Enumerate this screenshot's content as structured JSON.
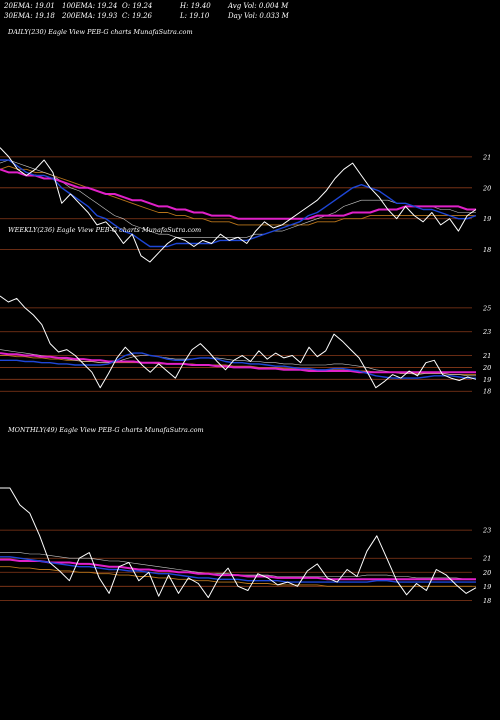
{
  "header": {
    "stats": [
      [
        "20EMA: 19.01",
        "100EMA: 19.24",
        "O: 19.24",
        "H: 19.40",
        "Avg Vol: 0.004  M"
      ],
      [
        "30EMA: 19.18",
        "200EMA: 19.93",
        "C: 19.26",
        "L: 19.10",
        "Day Vol: 0.033 M"
      ]
    ]
  },
  "colors": {
    "background": "#000000",
    "price": "#ffffff",
    "ema_fast": "#1e46d6",
    "ema_slow": "#e020c8",
    "ema_thin": "#c9c9c9",
    "ema_brown": "#b8741a",
    "grid": "#8a3a1a"
  },
  "chart_data": [
    {
      "type": "line",
      "title": "DAILY(230)  Eagle   View  PEB-G charts MunafaSutra.com",
      "yticks": [
        "21",
        "20",
        "19",
        "18"
      ],
      "ylim": [
        17.6,
        22.0
      ],
      "series": [
        {
          "role": "price",
          "values": [
            21.3,
            21.0,
            20.6,
            20.4,
            20.6,
            20.9,
            20.5,
            19.5,
            19.8,
            19.5,
            19.2,
            18.8,
            18.9,
            18.6,
            18.2,
            18.5,
            17.8,
            17.6,
            17.9,
            18.2,
            18.4,
            18.3,
            18.1,
            18.3,
            18.2,
            18.5,
            18.3,
            18.4,
            18.2,
            18.6,
            18.9,
            18.7,
            18.8,
            19.0,
            19.2,
            19.4,
            19.6,
            19.9,
            20.3,
            20.6,
            20.8,
            20.4,
            20.0,
            19.7,
            19.3,
            19.0,
            19.4,
            19.1,
            18.9,
            19.2,
            18.8,
            19.0,
            18.6,
            19.1,
            19.3
          ]
        },
        {
          "role": "ema_fast",
          "values": [
            20.9,
            20.9,
            20.7,
            20.5,
            20.4,
            20.4,
            20.3,
            20.0,
            19.8,
            19.6,
            19.4,
            19.1,
            19.0,
            18.8,
            18.6,
            18.5,
            18.3,
            18.1,
            18.1,
            18.1,
            18.2,
            18.2,
            18.2,
            18.2,
            18.2,
            18.3,
            18.3,
            18.3,
            18.3,
            18.4,
            18.5,
            18.6,
            18.7,
            18.8,
            18.9,
            19.1,
            19.2,
            19.4,
            19.6,
            19.8,
            20.0,
            20.1,
            20.0,
            19.9,
            19.7,
            19.5,
            19.5,
            19.4,
            19.3,
            19.3,
            19.2,
            19.1,
            19.0,
            19.0,
            19.1
          ]
        },
        {
          "role": "ema_thin",
          "values": [
            20.8,
            20.9,
            20.8,
            20.7,
            20.6,
            20.5,
            20.4,
            20.2,
            20.0,
            19.9,
            19.7,
            19.5,
            19.3,
            19.1,
            19.0,
            18.8,
            18.7,
            18.6,
            18.5,
            18.5,
            18.4,
            18.4,
            18.4,
            18.4,
            18.4,
            18.4,
            18.4,
            18.4,
            18.4,
            18.5,
            18.5,
            18.6,
            18.6,
            18.7,
            18.8,
            18.9,
            19.0,
            19.1,
            19.2,
            19.4,
            19.5,
            19.6,
            19.6,
            19.6,
            19.6,
            19.5,
            19.5,
            19.4,
            19.4,
            19.4,
            19.3,
            19.3,
            19.2,
            19.2,
            19.2
          ]
        },
        {
          "role": "ema_brown",
          "values": [
            20.6,
            20.7,
            20.6,
            20.6,
            20.5,
            20.5,
            20.4,
            20.3,
            20.2,
            20.1,
            20.0,
            19.9,
            19.8,
            19.7,
            19.6,
            19.5,
            19.4,
            19.3,
            19.2,
            19.2,
            19.1,
            19.1,
            19.0,
            19.0,
            18.9,
            18.9,
            18.9,
            18.8,
            18.8,
            18.8,
            18.8,
            18.8,
            18.8,
            18.8,
            18.8,
            18.8,
            18.9,
            18.9,
            18.9,
            19.0,
            19.0,
            19.0,
            19.1,
            19.1,
            19.1,
            19.1,
            19.1,
            19.1,
            19.1,
            19.1,
            19.1,
            19.1,
            19.1,
            19.1,
            19.1
          ]
        },
        {
          "role": "ema_slow",
          "values": [
            20.6,
            20.5,
            20.5,
            20.4,
            20.4,
            20.3,
            20.3,
            20.2,
            20.1,
            20.0,
            20.0,
            19.9,
            19.8,
            19.8,
            19.7,
            19.6,
            19.6,
            19.5,
            19.4,
            19.4,
            19.3,
            19.3,
            19.2,
            19.2,
            19.1,
            19.1,
            19.1,
            19.0,
            19.0,
            19.0,
            19.0,
            19.0,
            19.0,
            19.0,
            19.0,
            19.0,
            19.1,
            19.1,
            19.1,
            19.1,
            19.2,
            19.2,
            19.2,
            19.3,
            19.3,
            19.3,
            19.4,
            19.4,
            19.4,
            19.4,
            19.4,
            19.4,
            19.4,
            19.3,
            19.3
          ]
        }
      ]
    },
    {
      "type": "line",
      "title": "WEEKLY(236)  Eagle   View  PEB-G charts MunafaSutra.com",
      "yticks": [
        "25",
        "23",
        "21",
        "20",
        "19",
        "18"
      ],
      "ylim": [
        17.6,
        26.0
      ],
      "series": [
        {
          "role": "price",
          "values": [
            26.0,
            25.5,
            25.8,
            25.0,
            24.4,
            23.6,
            22.0,
            21.3,
            21.5,
            21.0,
            20.3,
            19.6,
            18.3,
            19.5,
            20.8,
            21.7,
            21.0,
            20.2,
            19.6,
            20.3,
            19.7,
            19.1,
            20.4,
            21.5,
            22.0,
            21.3,
            20.5,
            19.8,
            20.6,
            21.0,
            20.5,
            21.4,
            20.7,
            21.2,
            20.8,
            21.0,
            20.4,
            21.7,
            20.9,
            21.4,
            22.8,
            22.2,
            21.5,
            20.8,
            19.6,
            18.3,
            18.8,
            19.4,
            19.1,
            19.7,
            19.3,
            20.4,
            20.6,
            19.4,
            19.1,
            18.9,
            19.2,
            19.0
          ]
        },
        {
          "role": "ema_fast",
          "values": [
            20.6,
            20.6,
            20.6,
            20.5,
            20.5,
            20.4,
            20.4,
            20.3,
            20.3,
            20.2,
            20.2,
            20.2,
            20.2,
            20.3,
            20.6,
            21.0,
            21.2,
            21.2,
            21.0,
            20.9,
            20.7,
            20.6,
            20.6,
            20.7,
            20.8,
            20.8,
            20.7,
            20.5,
            20.4,
            20.4,
            20.3,
            20.3,
            20.2,
            20.1,
            20.1,
            20.0,
            19.9,
            19.9,
            19.8,
            19.8,
            19.9,
            19.9,
            19.8,
            19.7,
            19.5,
            19.3,
            19.2,
            19.1,
            19.1,
            19.1,
            19.1,
            19.2,
            19.3,
            19.3,
            19.3,
            19.2,
            19.1,
            19.1
          ]
        },
        {
          "role": "ema_thin",
          "values": [
            21.5,
            21.4,
            21.3,
            21.2,
            21.1,
            21.0,
            20.9,
            20.8,
            20.7,
            20.6,
            20.5,
            20.5,
            20.4,
            20.4,
            20.5,
            20.7,
            20.9,
            21.0,
            21.0,
            20.9,
            20.8,
            20.7,
            20.7,
            20.7,
            20.8,
            20.8,
            20.8,
            20.7,
            20.6,
            20.6,
            20.5,
            20.5,
            20.4,
            20.4,
            20.3,
            20.3,
            20.2,
            20.2,
            20.2,
            20.2,
            20.3,
            20.3,
            20.2,
            20.1,
            20.0,
            19.8,
            19.7,
            19.6,
            19.5,
            19.5,
            19.4,
            19.5,
            19.5,
            19.5,
            19.4,
            19.4,
            19.3,
            19.3
          ]
        },
        {
          "role": "ema_brown",
          "values": [
            21.0,
            21.0,
            20.9,
            20.9,
            20.8,
            20.8,
            20.7,
            20.7,
            20.6,
            20.6,
            20.5,
            20.5,
            20.4,
            20.4,
            20.4,
            20.4,
            20.4,
            20.4,
            20.4,
            20.3,
            20.3,
            20.3,
            20.3,
            20.3,
            20.2,
            20.2,
            20.2,
            20.2,
            20.1,
            20.1,
            20.1,
            20.0,
            20.0,
            20.0,
            19.9,
            19.9,
            19.9,
            19.8,
            19.8,
            19.8,
            19.8,
            19.8,
            19.7,
            19.7,
            19.7,
            19.6,
            19.6,
            19.6,
            19.5,
            19.5,
            19.5,
            19.5,
            19.5,
            19.5,
            19.4,
            19.4,
            19.4,
            19.4
          ]
        },
        {
          "role": "ema_slow",
          "values": [
            21.2,
            21.1,
            21.1,
            21.0,
            21.0,
            20.9,
            20.9,
            20.8,
            20.8,
            20.7,
            20.7,
            20.6,
            20.6,
            20.5,
            20.5,
            20.5,
            20.5,
            20.4,
            20.4,
            20.4,
            20.3,
            20.3,
            20.3,
            20.2,
            20.2,
            20.2,
            20.1,
            20.1,
            20.0,
            20.0,
            20.0,
            19.9,
            19.9,
            19.9,
            19.8,
            19.8,
            19.8,
            19.7,
            19.7,
            19.7,
            19.7,
            19.7,
            19.7,
            19.6,
            19.6,
            19.6,
            19.6,
            19.6,
            19.6,
            19.6,
            19.6,
            19.6,
            19.6,
            19.6,
            19.6,
            19.6,
            19.6,
            19.6
          ]
        }
      ]
    },
    {
      "type": "line",
      "title": "MONTHLY(49)  Eagle   View  PEB-G charts MunafaSutra.com",
      "yticks": [
        "23",
        "21",
        "20",
        "19",
        "18"
      ],
      "ylim": [
        17.6,
        26.0
      ],
      "series": [
        {
          "role": "price",
          "values": [
            26.0,
            26.0,
            24.8,
            24.2,
            22.6,
            20.7,
            20.1,
            19.4,
            21.0,
            21.4,
            19.6,
            18.5,
            20.4,
            20.7,
            19.4,
            20.0,
            18.3,
            19.8,
            18.5,
            19.6,
            19.2,
            18.2,
            19.5,
            20.3,
            19.0,
            18.7,
            19.9,
            19.6,
            19.1,
            19.3,
            19.0,
            20.1,
            20.6,
            19.6,
            19.3,
            20.2,
            19.7,
            21.5,
            22.6,
            21.0,
            19.4,
            18.4,
            19.2,
            18.7,
            20.2,
            19.8,
            19.1,
            18.5,
            18.9
          ]
        },
        {
          "role": "ema_fast",
          "values": [
            21.1,
            21.1,
            21.0,
            20.9,
            20.8,
            20.7,
            20.6,
            20.5,
            20.4,
            20.4,
            20.3,
            20.2,
            20.2,
            20.1,
            20.1,
            20.0,
            19.9,
            19.9,
            19.8,
            19.7,
            19.6,
            19.6,
            19.5,
            19.5,
            19.5,
            19.4,
            19.4,
            19.4,
            19.4,
            19.3,
            19.3,
            19.3,
            19.3,
            19.3,
            19.3,
            19.3,
            19.3,
            19.3,
            19.4,
            19.4,
            19.3,
            19.3,
            19.3,
            19.3,
            19.3,
            19.3,
            19.3,
            19.3,
            19.3
          ]
        },
        {
          "role": "ema_thin",
          "values": [
            21.4,
            21.4,
            21.4,
            21.3,
            21.3,
            21.2,
            21.1,
            21.0,
            21.0,
            21.0,
            20.9,
            20.8,
            20.8,
            20.7,
            20.6,
            20.5,
            20.4,
            20.3,
            20.2,
            20.1,
            20.0,
            19.9,
            19.9,
            19.9,
            19.8,
            19.8,
            19.8,
            19.8,
            19.7,
            19.7,
            19.7,
            19.7,
            19.7,
            19.7,
            19.7,
            19.7,
            19.7,
            19.8,
            19.8,
            19.8,
            19.7,
            19.7,
            19.6,
            19.6,
            19.6,
            19.6,
            19.6,
            19.5,
            19.5
          ]
        },
        {
          "role": "ema_brown",
          "values": [
            20.4,
            20.4,
            20.3,
            20.3,
            20.2,
            20.2,
            20.1,
            20.1,
            20.0,
            20.0,
            19.9,
            19.9,
            19.8,
            19.8,
            19.7,
            19.7,
            19.6,
            19.6,
            19.5,
            19.5,
            19.4,
            19.4,
            19.3,
            19.3,
            19.3,
            19.2,
            19.2,
            19.2,
            19.1,
            19.1,
            19.1,
            19.1,
            19.1,
            19.0,
            19.0,
            19.0,
            19.0,
            19.0,
            19.0,
            19.0,
            19.0,
            19.0,
            19.0,
            19.0,
            19.0,
            19.0,
            19.0,
            19.0,
            19.0
          ]
        },
        {
          "role": "ema_slow",
          "values": [
            20.9,
            20.9,
            20.8,
            20.8,
            20.8,
            20.7,
            20.7,
            20.7,
            20.6,
            20.6,
            20.5,
            20.4,
            20.4,
            20.3,
            20.2,
            20.2,
            20.1,
            20.1,
            20.0,
            20.0,
            19.9,
            19.9,
            19.8,
            19.8,
            19.8,
            19.7,
            19.7,
            19.7,
            19.6,
            19.6,
            19.6,
            19.6,
            19.6,
            19.5,
            19.5,
            19.5,
            19.5,
            19.5,
            19.5,
            19.5,
            19.5,
            19.5,
            19.5,
            19.5,
            19.5,
            19.5,
            19.5,
            19.5,
            19.5
          ]
        }
      ]
    }
  ]
}
